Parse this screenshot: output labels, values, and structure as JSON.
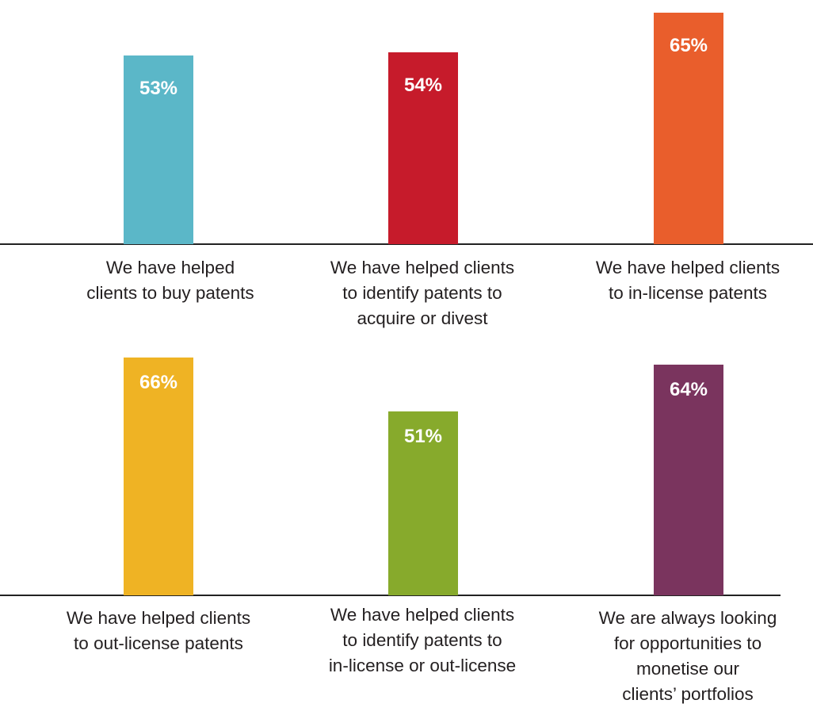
{
  "chart_data": [
    {
      "type": "bar",
      "title": "",
      "xlabel": "",
      "ylabel": "",
      "ylim": [
        0,
        100
      ],
      "grid": false,
      "categories": [
        "We have helped\nclients to buy patents",
        "We have helped clients\nto identify patents to\nacquire or divest",
        "We have helped clients\nto in-license patents"
      ],
      "values": [
        53,
        54,
        65
      ],
      "labels": [
        "53%",
        "54%",
        "65%"
      ],
      "colors": [
        "#5bb7c8",
        "#c61b2b",
        "#e95e2c"
      ]
    },
    {
      "type": "bar",
      "title": "",
      "xlabel": "",
      "ylabel": "",
      "ylim": [
        0,
        100
      ],
      "grid": false,
      "categories": [
        "We have helped clients\nto out-license patents",
        "We have helped clients\nto identify patents to\nin-license or out-license",
        "We are always looking\nfor opportunities to\nmonetise our\nclients’ portfolios"
      ],
      "values": [
        66,
        51,
        64
      ],
      "labels": [
        "66%",
        "51%",
        "64%"
      ],
      "colors": [
        "#efb324",
        "#87aa2c",
        "#7a345e"
      ]
    }
  ]
}
